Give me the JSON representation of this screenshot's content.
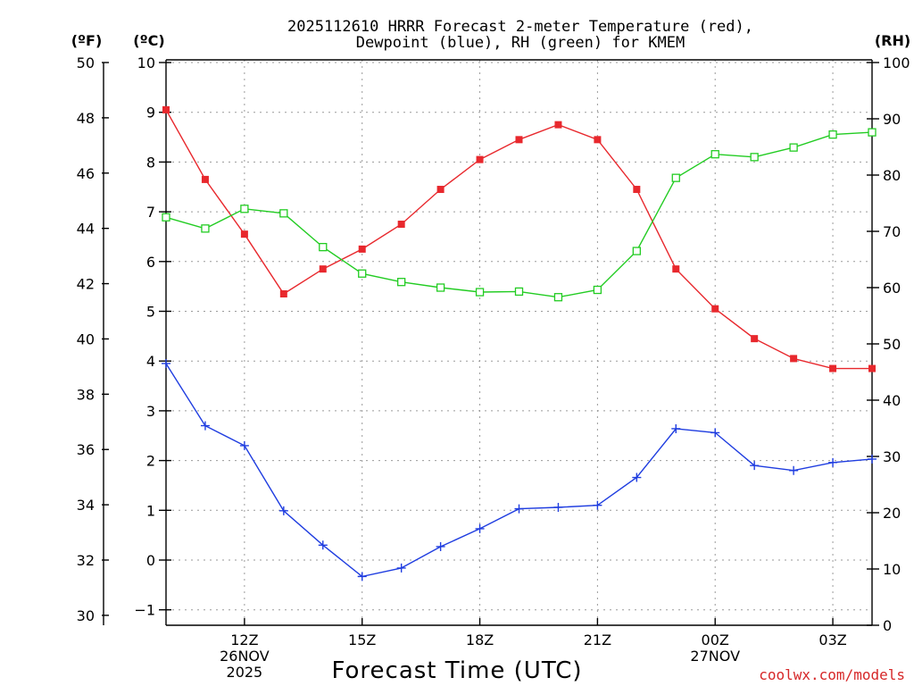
{
  "chart_data": {
    "type": "line",
    "title_lines": [
      "2025112610 HRRR Forecast 2-meter Temperature (red),",
      "Dewpoint (blue), RH (green) for KMEM"
    ],
    "unit_labels": {
      "fahrenheit": "(ºF)",
      "celsius": "(ºC)",
      "rh": "(RH)"
    },
    "xlabel": "Forecast Time (UTC)",
    "credit": "coolwx.com/models",
    "forecast_hours": [
      10,
      11,
      12,
      13,
      14,
      15,
      16,
      17,
      18,
      19,
      20,
      21,
      22,
      23,
      24,
      25,
      26,
      27,
      28
    ],
    "xlim": [
      10,
      28
    ],
    "x_ticks": [
      {
        "hour": 12,
        "lines": [
          "12Z",
          "26NOV",
          "2025"
        ]
      },
      {
        "hour": 15,
        "lines": [
          "15Z"
        ]
      },
      {
        "hour": 18,
        "lines": [
          "18Z"
        ]
      },
      {
        "hour": 21,
        "lines": [
          "21Z"
        ]
      },
      {
        "hour": 24,
        "lines": [
          "00Z",
          "27NOV"
        ]
      },
      {
        "hour": 27,
        "lines": [
          "03Z"
        ]
      }
    ],
    "celsius_axis": {
      "range": [
        -1.2,
        10
      ],
      "ticks": [
        -1,
        0,
        1,
        2,
        3,
        4,
        5,
        6,
        7,
        8,
        9,
        10
      ],
      "tick_labels": [
        "−1",
        "0",
        "1",
        "2",
        "3",
        "4",
        "5",
        "6",
        "7",
        "8",
        "9",
        "10"
      ]
    },
    "fahrenheit_axis": {
      "ticks": [
        30,
        32,
        34,
        36,
        38,
        40,
        42,
        44,
        46,
        48,
        50
      ],
      "tick_labels": [
        "30",
        "32",
        "34",
        "36",
        "38",
        "40",
        "42",
        "44",
        "46",
        "48",
        "50"
      ]
    },
    "rh_axis": {
      "range": [
        0,
        100
      ],
      "ticks": [
        0,
        10,
        20,
        30,
        40,
        50,
        60,
        70,
        80,
        90,
        100
      ],
      "tick_labels": [
        "0",
        "10",
        "20",
        "30",
        "40",
        "50",
        "60",
        "70",
        "80",
        "90",
        "100"
      ]
    },
    "series": [
      {
        "name": "2-meter Temperature",
        "axis": "celsius",
        "color": "#e8282d",
        "marker": "filled-square",
        "values": [
          9.05,
          7.65,
          6.55,
          5.35,
          5.85,
          6.25,
          6.75,
          7.45,
          8.05,
          8.45,
          8.75,
          8.45,
          7.45,
          5.85,
          5.05,
          4.45,
          4.05,
          3.85,
          3.85
        ]
      },
      {
        "name": "Dewpoint",
        "axis": "celsius",
        "color": "#1f3de0",
        "marker": "plus",
        "values": [
          3.95,
          2.7,
          2.3,
          0.99,
          0.3,
          -0.33,
          -0.16,
          0.27,
          0.63,
          1.03,
          1.06,
          1.1,
          1.66,
          2.64,
          2.56,
          1.9,
          1.8,
          1.96,
          2.03
        ]
      },
      {
        "name": "RH",
        "axis": "rh",
        "color": "#22cc22",
        "marker": "open-square",
        "values": [
          72.5,
          70.5,
          74.0,
          73.2,
          67.2,
          62.5,
          61.0,
          60.0,
          59.2,
          59.3,
          58.3,
          59.6,
          66.5,
          79.5,
          83.7,
          83.2,
          84.9,
          87.2,
          87.6
        ]
      }
    ]
  }
}
